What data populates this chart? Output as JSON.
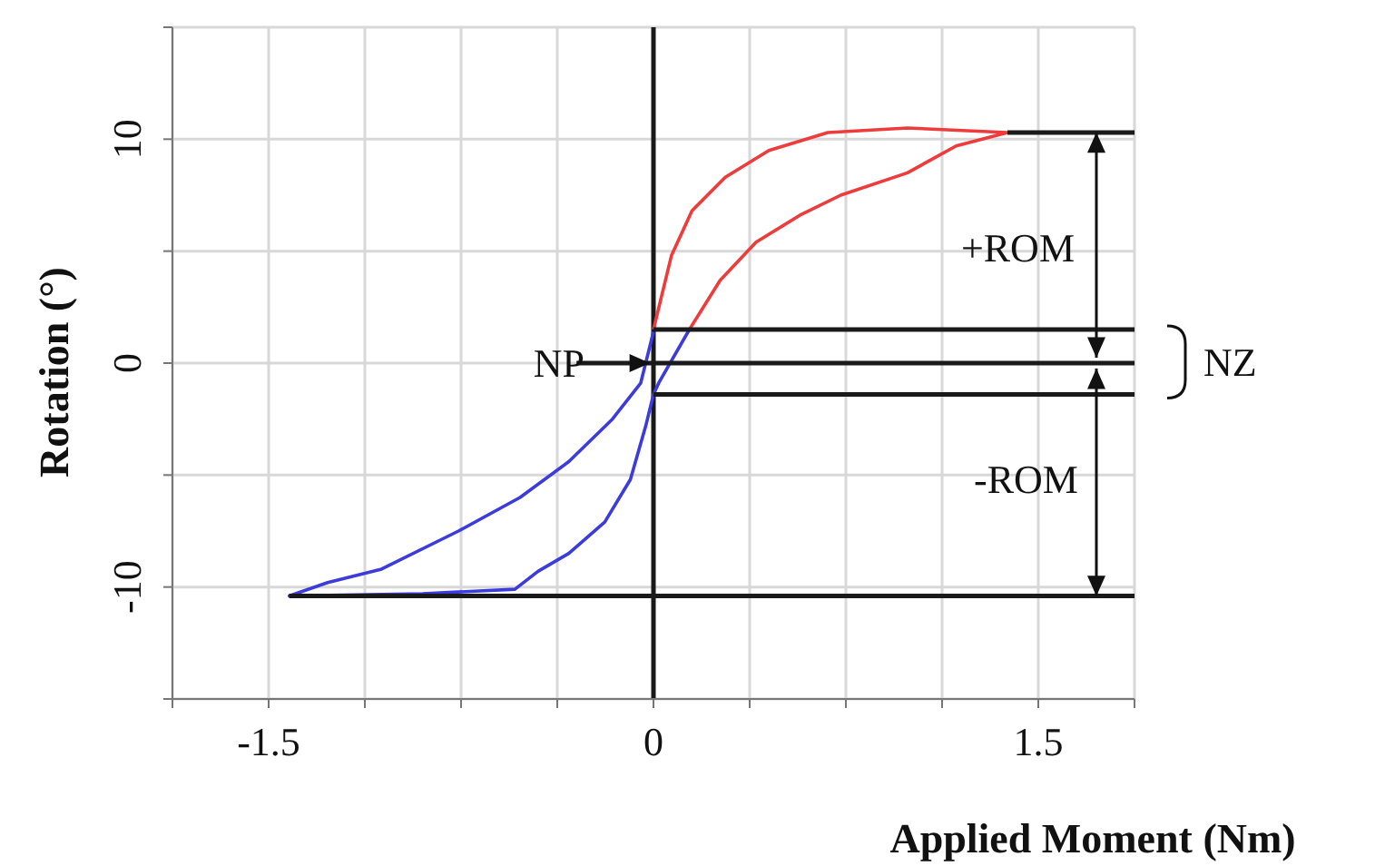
{
  "chart_data": {
    "type": "line",
    "xlabel": "Applied Moment (Nm)",
    "ylabel": "Rotation (°)",
    "xlim": [
      -1.875,
      1.875
    ],
    "xticks": [
      {
        "value": -1.875,
        "label": null
      },
      {
        "value": -1.5,
        "label": "-1.5"
      },
      {
        "value": -1.125,
        "label": null
      },
      {
        "value": -0.75,
        "label": null
      },
      {
        "value": -0.375,
        "label": null
      },
      {
        "value": 0,
        "label": "0"
      },
      {
        "value": 0.375,
        "label": null
      },
      {
        "value": 0.75,
        "label": null
      },
      {
        "value": 1.125,
        "label": null
      },
      {
        "value": 1.5,
        "label": "1.5"
      },
      {
        "value": 1.875,
        "label": null
      }
    ],
    "ylim": [
      -15,
      15
    ],
    "yticks": [
      {
        "value": -15,
        "label": null
      },
      {
        "value": -10,
        "label": "-10"
      },
      {
        "value": -5,
        "label": null
      },
      {
        "value": 0,
        "label": "0"
      },
      {
        "value": 5,
        "label": null
      },
      {
        "value": 10,
        "label": "10"
      },
      {
        "value": 15,
        "label": null
      }
    ],
    "grid": true,
    "marker": "none",
    "line_style": "solid",
    "series": [
      {
        "color": "#ee3b3b",
        "x": [
          0,
          0.07,
          0.15,
          0.28,
          0.45,
          0.68,
          0.99,
          1.38,
          1.18,
          0.99,
          0.73,
          0.57,
          0.4,
          0.26,
          0.14
        ],
        "values": [
          1.5,
          4.8,
          6.8,
          8.3,
          9.5,
          10.3,
          10.5,
          10.3,
          9.7,
          8.5,
          7.5,
          6.6,
          5.4,
          3.7,
          1.5
        ]
      },
      {
        "color": "#3c3cdc",
        "x": [
          0.14,
          0.06,
          0.02,
          0,
          -0.03,
          -0.09,
          -0.19,
          -0.33,
          -0.45,
          -0.54,
          -0.9,
          -1.42,
          -1.27,
          -1.06,
          -0.76,
          -0.52,
          -0.33,
          -0.16,
          -0.05,
          0
        ],
        "values": [
          1.5,
          -0.1,
          -0.9,
          -1.4,
          -2.8,
          -5.2,
          -7.1,
          -8.5,
          -9.3,
          -10.1,
          -10.3,
          -10.4,
          -9.8,
          -9.2,
          -7.5,
          -6,
          -4.4,
          -2.5,
          -0.9,
          1.4
        ]
      },
      {
        "color": "#1a1a1a",
        "x": [
          1.38,
          1.875
        ],
        "values": [
          10.3,
          10.3
        ]
      },
      {
        "color": "#1a1a1a",
        "x": [
          0,
          1.875
        ],
        "values": [
          1.5,
          1.5
        ]
      },
      {
        "color": "#1a1a1a",
        "x": [
          -0.3,
          1.875
        ],
        "values": [
          0,
          0
        ]
      },
      {
        "color": "#1a1a1a",
        "x": [
          0,
          1.875
        ],
        "values": [
          -1.4,
          -1.4
        ]
      },
      {
        "color": "#1a1a1a",
        "x": [
          -1.42,
          1.875
        ],
        "values": [
          -10.4,
          -10.4
        ]
      }
    ],
    "ref_lines": [
      {
        "axis": "x",
        "value": 0,
        "color": "#1a1a1a"
      }
    ],
    "annotations": [
      {
        "text": "NP",
        "x": 0,
        "y": 0
      },
      "+ROM",
      "-ROM",
      "NZ"
    ]
  }
}
